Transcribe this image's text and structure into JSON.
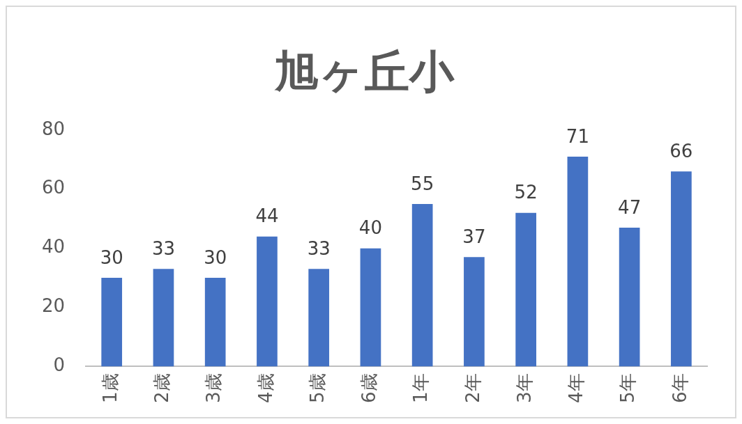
{
  "chart_data": {
    "type": "bar",
    "title": "旭ヶ丘小",
    "categories": [
      "1歳",
      "2歳",
      "3歳",
      "4歳",
      "5歳",
      "6歳",
      "1年",
      "2年",
      "3年",
      "4年",
      "5年",
      "6年"
    ],
    "values": [
      30,
      33,
      30,
      44,
      33,
      40,
      55,
      37,
      52,
      71,
      47,
      66
    ],
    "color": "#4472c4",
    "ylim": [
      0,
      80
    ],
    "yticks": [
      0,
      20,
      40,
      60,
      80
    ],
    "grid": false,
    "legend": false,
    "data_labels": true
  }
}
